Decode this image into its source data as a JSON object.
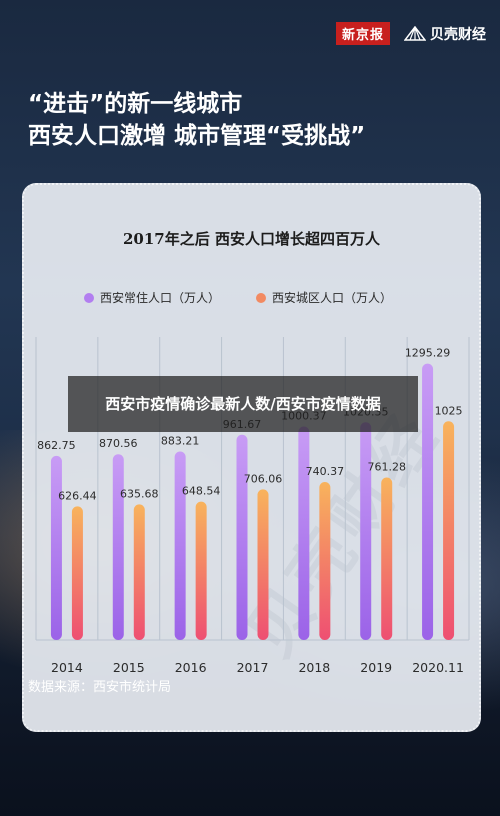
{
  "brand": {
    "left": "新京报",
    "right": "贝壳财经",
    "icon": "shell-logo-icon"
  },
  "headline": {
    "line1": "“进击”的新一线城市",
    "line2": "西安人口激增 城市管理“受挑战”"
  },
  "overlay": {
    "text": "西安市疫情确诊最新人数/西安市疫情数据"
  },
  "source": "数据来源：西安市统计局",
  "watermark": "贝壳财经",
  "colors": {
    "series1_top": "#c89cf5",
    "series1_bottom": "#9b63e8",
    "series2_top": "#f8b35c",
    "series2_bottom": "#ee4f72"
  },
  "chart_data": {
    "type": "bar",
    "title": "2017年之后 西安人口增长超四百万人",
    "categories": [
      "2014",
      "2015",
      "2016",
      "2017",
      "2018",
      "2019",
      "2020.11"
    ],
    "series": [
      {
        "name": "西安常住人口（万人）",
        "values": [
          862.75,
          870.56,
          883.21,
          961.67,
          1000.37,
          1020.35,
          1295.29
        ]
      },
      {
        "name": "西安城区人口（万人）",
        "values": [
          626.44,
          635.68,
          648.54,
          706.06,
          740.37,
          761.28,
          1025
        ]
      }
    ],
    "labels": [
      [
        "862.75",
        "870.56",
        "883.21",
        "961.67",
        "1000.37",
        "1020.35",
        "1295.29"
      ],
      [
        "626.44",
        "635.68",
        "648.54",
        "706.06",
        "740.37",
        "761.28",
        "1025"
      ]
    ],
    "ylim": [
      0,
      1420
    ],
    "grid": "vertical",
    "legend": "top"
  }
}
